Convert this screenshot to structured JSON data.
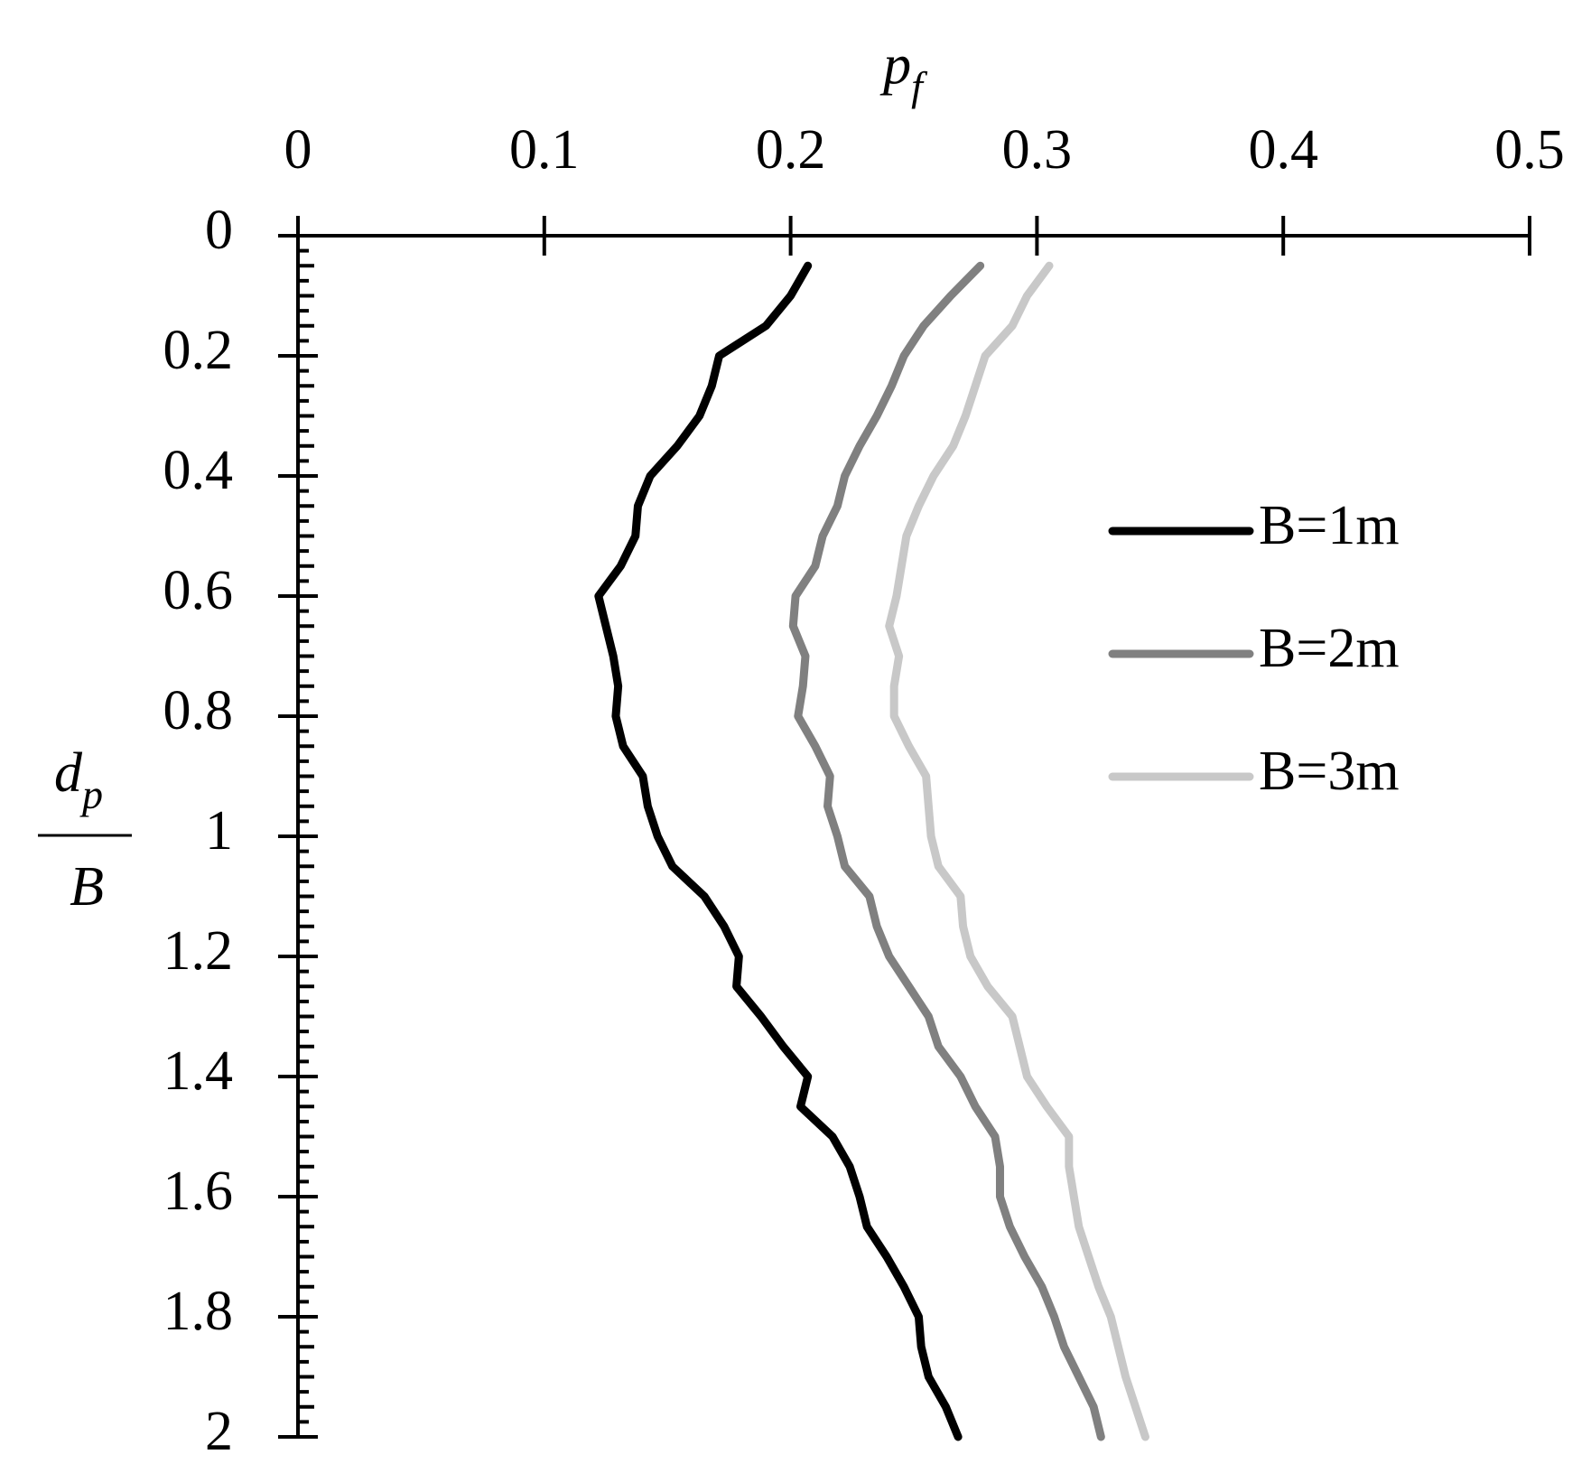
{
  "chart_data": {
    "type": "line",
    "x_label": "p",
    "x_label_sub": "f",
    "y_label_num": "d",
    "y_label_num_sub": "p",
    "y_label_den": "B",
    "xlim": [
      0,
      0.5
    ],
    "xticks": [
      0,
      0.1,
      0.2,
      0.3,
      0.4,
      0.5
    ],
    "ylim": [
      0,
      2
    ],
    "yticks": [
      0,
      0.2,
      0.4,
      0.6,
      0.8,
      1,
      1.2,
      1.4,
      1.6,
      1.8,
      2
    ],
    "y": [
      0.05,
      0.1,
      0.15,
      0.2,
      0.25,
      0.3,
      0.35,
      0.4,
      0.45,
      0.5,
      0.55,
      0.6,
      0.65,
      0.7,
      0.75,
      0.8,
      0.85,
      0.9,
      0.95,
      1.0,
      1.05,
      1.1,
      1.15,
      1.2,
      1.25,
      1.3,
      1.35,
      1.4,
      1.45,
      1.5,
      1.55,
      1.6,
      1.65,
      1.7,
      1.75,
      1.8,
      1.85,
      1.9,
      1.95,
      2.0
    ],
    "series": [
      {
        "name": "B=1m",
        "color": "#000000",
        "values": [
          0.207,
          0.2,
          0.19,
          0.171,
          0.168,
          0.163,
          0.154,
          0.143,
          0.138,
          0.137,
          0.131,
          0.122,
          0.125,
          0.128,
          0.13,
          0.129,
          0.132,
          0.14,
          0.142,
          0.146,
          0.152,
          0.165,
          0.173,
          0.179,
          0.178,
          0.188,
          0.197,
          0.207,
          0.204,
          0.217,
          0.224,
          0.228,
          0.231,
          0.239,
          0.246,
          0.252,
          0.253,
          0.256,
          0.263,
          0.268
        ]
      },
      {
        "name": "B=2m",
        "color": "#808080",
        "values": [
          0.277,
          0.265,
          0.254,
          0.246,
          0.241,
          0.235,
          0.228,
          0.222,
          0.219,
          0.213,
          0.21,
          0.202,
          0.201,
          0.206,
          0.205,
          0.203,
          0.21,
          0.216,
          0.215,
          0.219,
          0.222,
          0.232,
          0.235,
          0.24,
          0.248,
          0.256,
          0.26,
          0.269,
          0.275,
          0.283,
          0.285,
          0.285,
          0.289,
          0.295,
          0.302,
          0.307,
          0.311,
          0.317,
          0.323,
          0.326
        ]
      },
      {
        "name": "B=3m",
        "color": "#c8c8c8",
        "values": [
          0.305,
          0.296,
          0.29,
          0.279,
          0.275,
          0.271,
          0.266,
          0.258,
          0.252,
          0.247,
          0.245,
          0.243,
          0.24,
          0.244,
          0.242,
          0.242,
          0.248,
          0.255,
          0.256,
          0.257,
          0.26,
          0.269,
          0.27,
          0.273,
          0.28,
          0.29,
          0.293,
          0.296,
          0.304,
          0.313,
          0.313,
          0.315,
          0.317,
          0.321,
          0.325,
          0.33,
          0.333,
          0.336,
          0.34,
          0.344
        ]
      }
    ]
  }
}
